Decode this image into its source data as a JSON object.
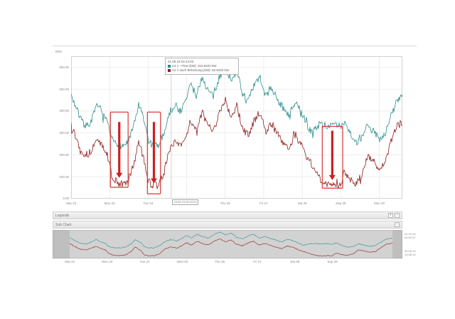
{
  "window": {
    "unit_label": "kWh"
  },
  "legend": {
    "timestamp": "21.09.19 04:14:02",
    "items": [
      {
        "label": "A2 1 - Flow (kW): 316.8402 kW",
        "color": "#2e8f8c"
      },
      {
        "label": "A2 1 nach Beheizung (kW): 55.8402 kW",
        "color": "#8e1e1e"
      }
    ]
  },
  "panels": {
    "legende": {
      "title": "Legende",
      "buttons": [
        "+",
        "−"
      ]
    },
    "subchart": {
      "title": "Sub Chart",
      "buttons": [
        "−"
      ]
    }
  },
  "sub_axis_times": {
    "start": "21.09.19\n04:04:37",
    "end": "30.09.19\n13:28:19"
  },
  "chart_data": {
    "type": "line",
    "title": "",
    "xlabel": "",
    "ylabel": "kWh",
    "ylim": [
      0,
      650
    ],
    "xlim_days": [
      0,
      8.6
    ],
    "grid": true,
    "legend_position": "top-left-inset",
    "x_ticks": [
      "Sep 22",
      "Mon 23",
      "Tue 24",
      "Wed 25",
      "Thu 26",
      "Fri 27",
      "Sat 28",
      "Sep 29",
      "Mon 30"
    ],
    "sub_x_ticks": [
      "Sep 22",
      "Mon 23",
      "Tue 24",
      "Wed 25",
      "Thu 26",
      "Fri 27",
      "Sat 28",
      "Sep 29"
    ],
    "y_ticks": [
      "600.00",
      "500.00",
      "400.00",
      "300.00",
      "200.00",
      "100.00",
      "0.00"
    ],
    "y_tick_values": [
      600,
      500,
      400,
      300,
      200,
      100,
      0
    ],
    "cursor": {
      "day": 2.6,
      "label": "24.09.19 04:15:22"
    },
    "noise": {
      "main_amp": 17,
      "sub_amp": 8,
      "seed_teal": 7,
      "seed_red": 13,
      "spike_chance": 0.07
    },
    "series": [
      {
        "name": "A2 1 - Flow (kW)",
        "color": "#2e8f8c",
        "anchors": [
          [
            0,
            470
          ],
          [
            0.1,
            430
          ],
          [
            0.2,
            385
          ],
          [
            0.3,
            345
          ],
          [
            0.45,
            330
          ],
          [
            0.6,
            390
          ],
          [
            0.7,
            435
          ],
          [
            0.8,
            390
          ],
          [
            0.95,
            340
          ],
          [
            1.05,
            270
          ],
          [
            1.2,
            245
          ],
          [
            1.35,
            240
          ],
          [
            1.5,
            265
          ],
          [
            1.65,
            345
          ],
          [
            1.75,
            430
          ],
          [
            1.9,
            355
          ],
          [
            2.0,
            265
          ],
          [
            2.1,
            245
          ],
          [
            2.25,
            240
          ],
          [
            2.4,
            295
          ],
          [
            2.55,
            390
          ],
          [
            2.7,
            430
          ],
          [
            2.85,
            395
          ],
          [
            3.0,
            460
          ],
          [
            3.1,
            525
          ],
          [
            3.25,
            470
          ],
          [
            3.4,
            555
          ],
          [
            3.55,
            495
          ],
          [
            3.7,
            465
          ],
          [
            3.85,
            555
          ],
          [
            4.0,
            605
          ],
          [
            4.15,
            540
          ],
          [
            4.3,
            585
          ],
          [
            4.45,
            480
          ],
          [
            4.6,
            445
          ],
          [
            4.75,
            515
          ],
          [
            4.9,
            555
          ],
          [
            5.05,
            465
          ],
          [
            5.2,
            505
          ],
          [
            5.35,
            455
          ],
          [
            5.5,
            415
          ],
          [
            5.65,
            375
          ],
          [
            5.8,
            435
          ],
          [
            5.95,
            405
          ],
          [
            6.1,
            345
          ],
          [
            6.25,
            300
          ],
          [
            6.4,
            335
          ],
          [
            6.55,
            340
          ],
          [
            6.7,
            330
          ],
          [
            6.85,
            335
          ],
          [
            7.0,
            330
          ],
          [
            7.1,
            355
          ],
          [
            7.25,
            300
          ],
          [
            7.4,
            255
          ],
          [
            7.55,
            275
          ],
          [
            7.7,
            335
          ],
          [
            7.85,
            305
          ],
          [
            8.0,
            275
          ],
          [
            8.15,
            295
          ],
          [
            8.3,
            375
          ],
          [
            8.45,
            445
          ],
          [
            8.6,
            465
          ]
        ]
      },
      {
        "name": "A2 1 nach Beheizung (kW)",
        "color": "#8e1e1e",
        "anchors": [
          [
            0,
            345
          ],
          [
            0.1,
            290
          ],
          [
            0.2,
            245
          ],
          [
            0.3,
            210
          ],
          [
            0.45,
            200
          ],
          [
            0.6,
            245
          ],
          [
            0.7,
            275
          ],
          [
            0.8,
            240
          ],
          [
            0.95,
            195
          ],
          [
            1.05,
            110
          ],
          [
            1.2,
            70
          ],
          [
            1.35,
            65
          ],
          [
            1.5,
            80
          ],
          [
            1.65,
            175
          ],
          [
            1.75,
            265
          ],
          [
            1.9,
            175
          ],
          [
            2.0,
            80
          ],
          [
            2.1,
            62
          ],
          [
            2.25,
            60
          ],
          [
            2.4,
            110
          ],
          [
            2.55,
            225
          ],
          [
            2.7,
            265
          ],
          [
            2.85,
            235
          ],
          [
            3.0,
            295
          ],
          [
            3.1,
            360
          ],
          [
            3.25,
            305
          ],
          [
            3.4,
            395
          ],
          [
            3.55,
            335
          ],
          [
            3.7,
            305
          ],
          [
            3.85,
            395
          ],
          [
            4.0,
            450
          ],
          [
            4.15,
            380
          ],
          [
            4.3,
            425
          ],
          [
            4.45,
            320
          ],
          [
            4.6,
            290
          ],
          [
            4.75,
            355
          ],
          [
            4.9,
            395
          ],
          [
            5.05,
            305
          ],
          [
            5.2,
            345
          ],
          [
            5.35,
            295
          ],
          [
            5.5,
            260
          ],
          [
            5.65,
            225
          ],
          [
            5.8,
            285
          ],
          [
            5.95,
            255
          ],
          [
            6.1,
            195
          ],
          [
            6.25,
            155
          ],
          [
            6.4,
            110
          ],
          [
            6.55,
            70
          ],
          [
            6.7,
            60
          ],
          [
            6.85,
            62
          ],
          [
            7.0,
            65
          ],
          [
            7.1,
            125
          ],
          [
            7.25,
            90
          ],
          [
            7.4,
            70
          ],
          [
            7.55,
            105
          ],
          [
            7.7,
            200
          ],
          [
            7.85,
            170
          ],
          [
            8.0,
            140
          ],
          [
            8.15,
            160
          ],
          [
            8.3,
            255
          ],
          [
            8.45,
            330
          ],
          [
            8.6,
            350
          ]
        ]
      }
    ],
    "annotations": {
      "color": "#d93535",
      "rects": [
        {
          "x0": 1.02,
          "x1": 1.48,
          "v_top": 395,
          "v_bottom": 52
        },
        {
          "x0": 1.98,
          "x1": 2.32,
          "v_top": 395,
          "v_bottom": 22
        },
        {
          "x0": 6.52,
          "x1": 7.05,
          "v_top": 330,
          "v_bottom": 48
        }
      ],
      "arrows": [
        {
          "x": 1.25,
          "v_from": 350,
          "v_to": 95
        },
        {
          "x": 2.15,
          "v_from": 350,
          "v_to": 70
        },
        {
          "x": 6.78,
          "v_from": 310,
          "v_to": 85
        }
      ]
    }
  }
}
